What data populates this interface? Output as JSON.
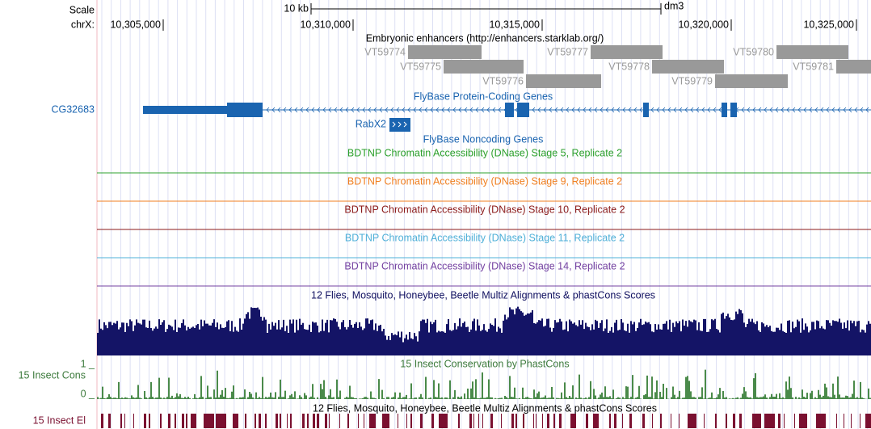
{
  "header": {
    "scale": "Scale",
    "chrom": "chrX:",
    "scale_bar": "10 kb",
    "assembly": "dm3"
  },
  "ruler": [
    "10,305,000",
    "10,310,000",
    "10,315,000",
    "10,320,000",
    "10,325,000"
  ],
  "enhancers": {
    "title": "Embryonic enhancers (http://enhancers.starklab.org/)",
    "items": [
      "VT59774",
      "VT59775",
      "VT59776",
      "VT59777",
      "VT59778",
      "VT59779",
      "VT59780",
      "VT59781"
    ]
  },
  "genes": {
    "left_label": "CG32683",
    "coding_title": "FlyBase Protein-Coding Genes",
    "noncoding_gene": "RabX2",
    "noncoding_title": "FlyBase Noncoding Genes"
  },
  "dnase_tracks": [
    "BDTNP Chromatin Accessibility (DNase) Stage 5, Replicate 2",
    "BDTNP Chromatin Accessibility (DNase) Stage 9, Replicate 2",
    "BDTNP Chromatin Accessibility (DNase) Stage 10, Replicate 2",
    "BDTNP Chromatin Accessibility (DNase) Stage 11, Replicate 2",
    "BDTNP Chromatin Accessibility (DNase) Stage 14, Replicate 2"
  ],
  "multiz_title": "12 Flies, Mosquito, Honeybee, Beetle Multiz Alignments & phastCons Scores",
  "cons": {
    "left_label": "15 Insect Cons",
    "max_label": "1 _",
    "min_label": "0 _",
    "title": "15 Insect Conservation by PhastCons"
  },
  "elements": {
    "title": "12 Flies, Mosquito, Honeybee, Beetle Multiz Alignments & phastCons Scores",
    "left_label": "15 Insect El"
  }
}
